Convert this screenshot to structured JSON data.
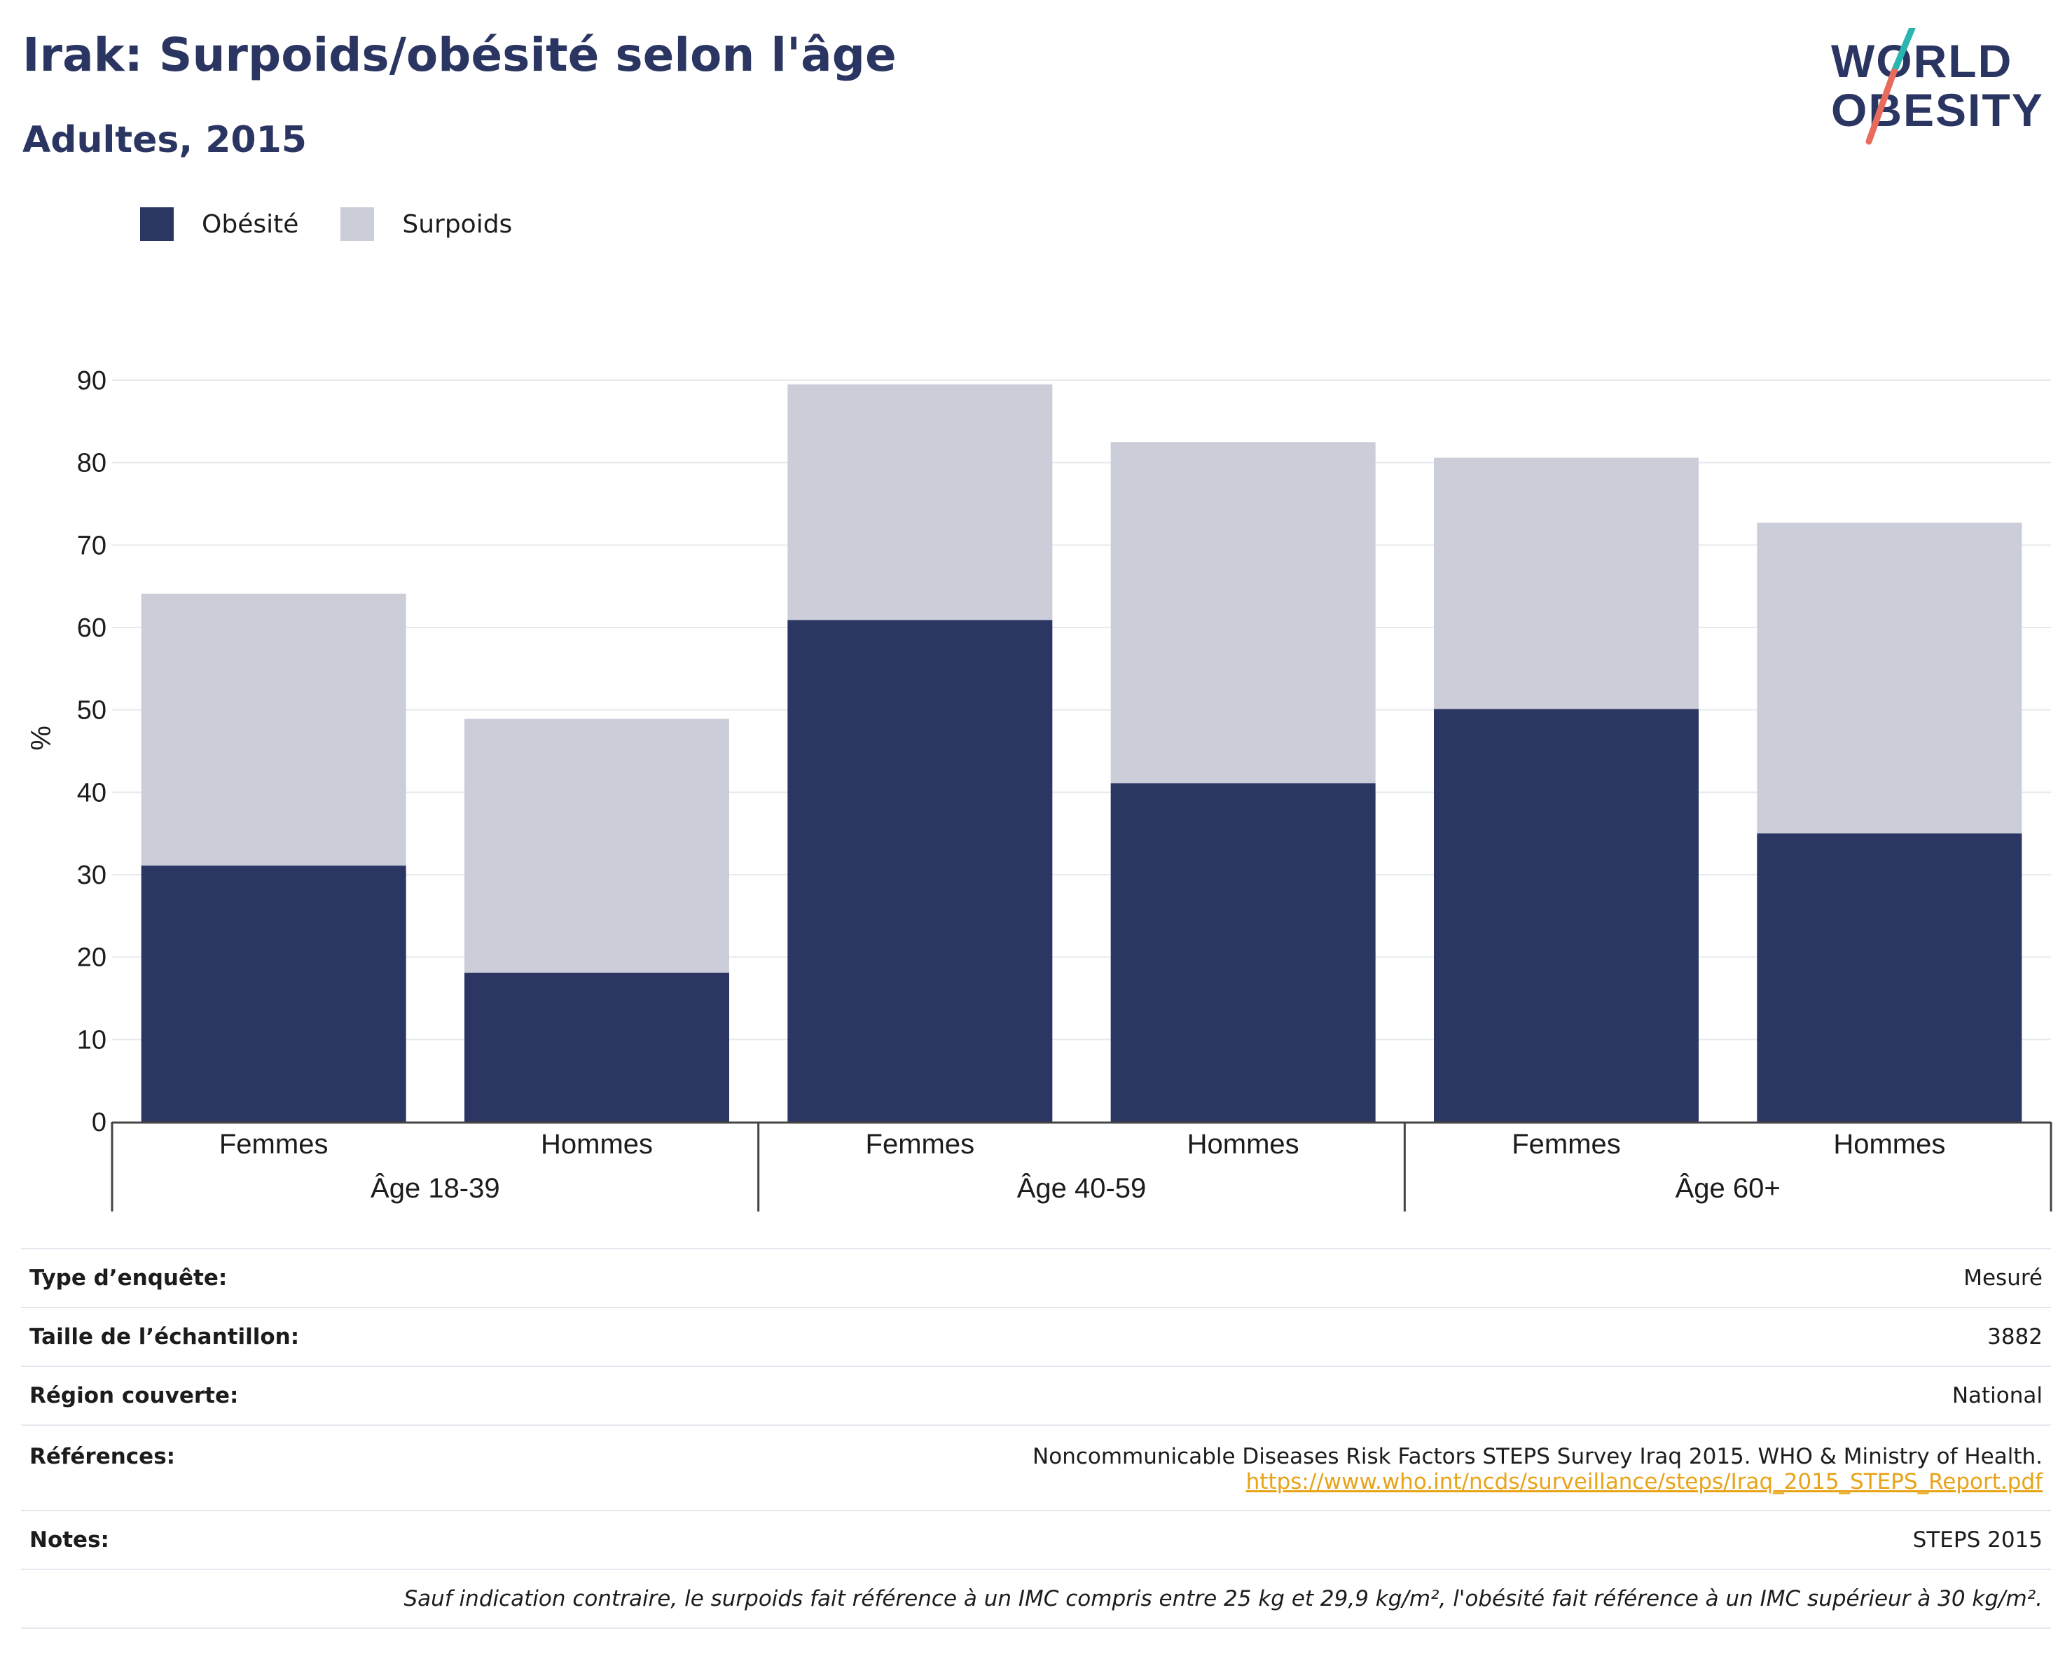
{
  "title": "Irak: Surpoids/obésité selon l'âge",
  "subtitle": "Adultes, 2015",
  "logo": {
    "line1": "WORLD",
    "line2": "OBESITY"
  },
  "colors": {
    "obesity": "#2b3663",
    "overweight": "#cbcdd9",
    "title": "#2b3561",
    "link": "#e8a317",
    "logo_teal": "#2bb5b0",
    "logo_coral": "#e86b5c"
  },
  "chart_data": {
    "type": "bar",
    "stacked": true,
    "ylabel": "%",
    "ylim": [
      0,
      90
    ],
    "yticks": [
      0,
      10,
      20,
      30,
      40,
      50,
      60,
      70,
      80,
      90
    ],
    "grid": true,
    "legend_position": "top-left",
    "groups": [
      "Âge 18-39",
      "Âge 40-59",
      "Âge 60+"
    ],
    "categories": [
      "Femmes",
      "Hommes",
      "Femmes",
      "Hommes",
      "Femmes",
      "Hommes"
    ],
    "series": [
      {
        "name": "Obésité",
        "values": [
          31.1,
          18.1,
          60.9,
          41.1,
          50.1,
          35.0
        ]
      },
      {
        "name": "Surpoids",
        "values": [
          33.0,
          30.8,
          28.6,
          41.4,
          30.5,
          37.7
        ]
      }
    ]
  },
  "info": [
    {
      "label": "Type d’enquête:",
      "value": "Mesuré"
    },
    {
      "label": "Taille de l’échantillon:",
      "value": "3882"
    },
    {
      "label": "Région couverte:",
      "value": "National"
    }
  ],
  "references": {
    "label": "Références:",
    "text": "Noncommunicable Diseases Risk Factors STEPS Survey Iraq 2015. WHO & Ministry of Health.",
    "url": "https://www.who.int/ncds/surveillance/steps/Iraq_2015_STEPS_Report.pdf"
  },
  "notes": {
    "label": "Notes:",
    "value": "STEPS 2015"
  },
  "footnote": "Sauf indication contraire, le surpoids fait référence à un IMC compris entre 25 kg et 29,9 kg/m², l'obésité fait référence à un IMC supérieur à 30 kg/m²."
}
